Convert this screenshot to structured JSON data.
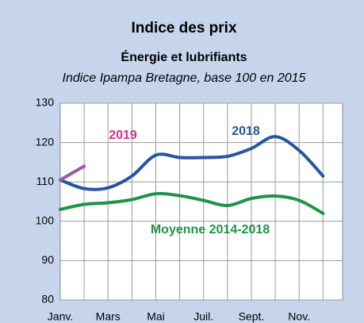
{
  "chart_data": {
    "type": "line",
    "title": "Indice des prix",
    "subtitle": "Énergie et lubrifiants",
    "subtitle2": "Indice Ipampa Bretagne, base 100 en 2015",
    "categories": [
      "Janv.",
      null,
      "Mars",
      null,
      "Mai",
      null,
      "Juil.",
      null,
      "Sept.",
      null,
      "Nov.",
      null
    ],
    "series": [
      {
        "name": "2018",
        "color": "#2556a3",
        "values": [
          110.5,
          108.3,
          108.5,
          111.5,
          116.8,
          116.2,
          116.2,
          116.5,
          118.5,
          121.5,
          118,
          111.5
        ]
      },
      {
        "name": "Moyenne 2014-2018",
        "color": "#1f9447",
        "values": [
          103,
          104.3,
          104.7,
          105.5,
          107,
          106.5,
          105.3,
          104,
          105.8,
          106.4,
          105.3,
          102
        ]
      },
      {
        "name": "2019",
        "color": "#9b5aa6",
        "values": [
          110.5,
          114,
          null,
          null,
          null,
          null,
          null,
          null,
          null,
          null,
          null,
          null
        ]
      }
    ],
    "ylim": [
      80,
      130
    ],
    "yticks": [
      80,
      90,
      100,
      110,
      120,
      130
    ],
    "grid": true
  }
}
